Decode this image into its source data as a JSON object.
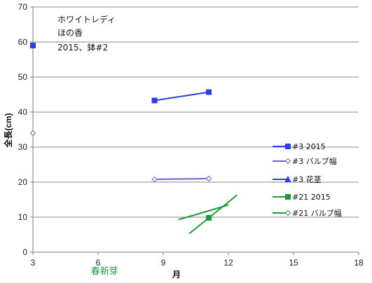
{
  "chart_data": {
    "type": "line",
    "title_lines": [
      "ホワイトレディ",
      "ほの香",
      "2015、鉢#2"
    ],
    "xlabel": "月",
    "ylabel": "全長(cm)",
    "xlim": [
      3,
      18
    ],
    "ylim": [
      0,
      70
    ],
    "xticks": [
      3,
      6,
      9,
      12,
      15,
      18
    ],
    "yticks": [
      0,
      10,
      20,
      30,
      40,
      50,
      60,
      70
    ],
    "grid": "horizontal",
    "legend_position": "right",
    "annotations": [
      {
        "text": "春新芽",
        "x": 6.3,
        "y": -5.5,
        "color": "#1a9a3a"
      }
    ],
    "series": [
      {
        "name": "#3 2015",
        "color": "#2b3fe6",
        "marker": "square-filled",
        "segments": [
          [
            [
              3.0,
              59.0
            ]
          ],
          [
            [
              8.6,
              43.3
            ],
            [
              11.1,
              45.7
            ]
          ]
        ]
      },
      {
        "name": "#3 バルブ幅",
        "color": "#6d62d0",
        "marker": "diamond-open",
        "segments": [
          [
            [
              3.0,
              34.0
            ]
          ],
          [
            [
              8.6,
              20.8
            ],
            [
              11.1,
              21.0
            ]
          ]
        ]
      },
      {
        "name": "#3 花茎",
        "color": "#2b3fe6",
        "marker": "triangle-filled",
        "segments": []
      },
      {
        "name": "#21 2015",
        "color": "#1a9a3a",
        "marker": "square-filled",
        "segments": [
          [
            [
              11.1,
              9.8
            ]
          ],
          [
            [
              10.2,
              5.3
            ],
            [
              12.4,
              16.3
            ]
          ]
        ]
      },
      {
        "name": "#21 バルブ幅",
        "color": "#1a9a3a",
        "marker": "diamond-open",
        "segments": [
          [
            [
              9.7,
              9.3
            ],
            [
              11.1,
              11.8
            ],
            [
              12.0,
              13.5
            ]
          ]
        ]
      }
    ]
  }
}
